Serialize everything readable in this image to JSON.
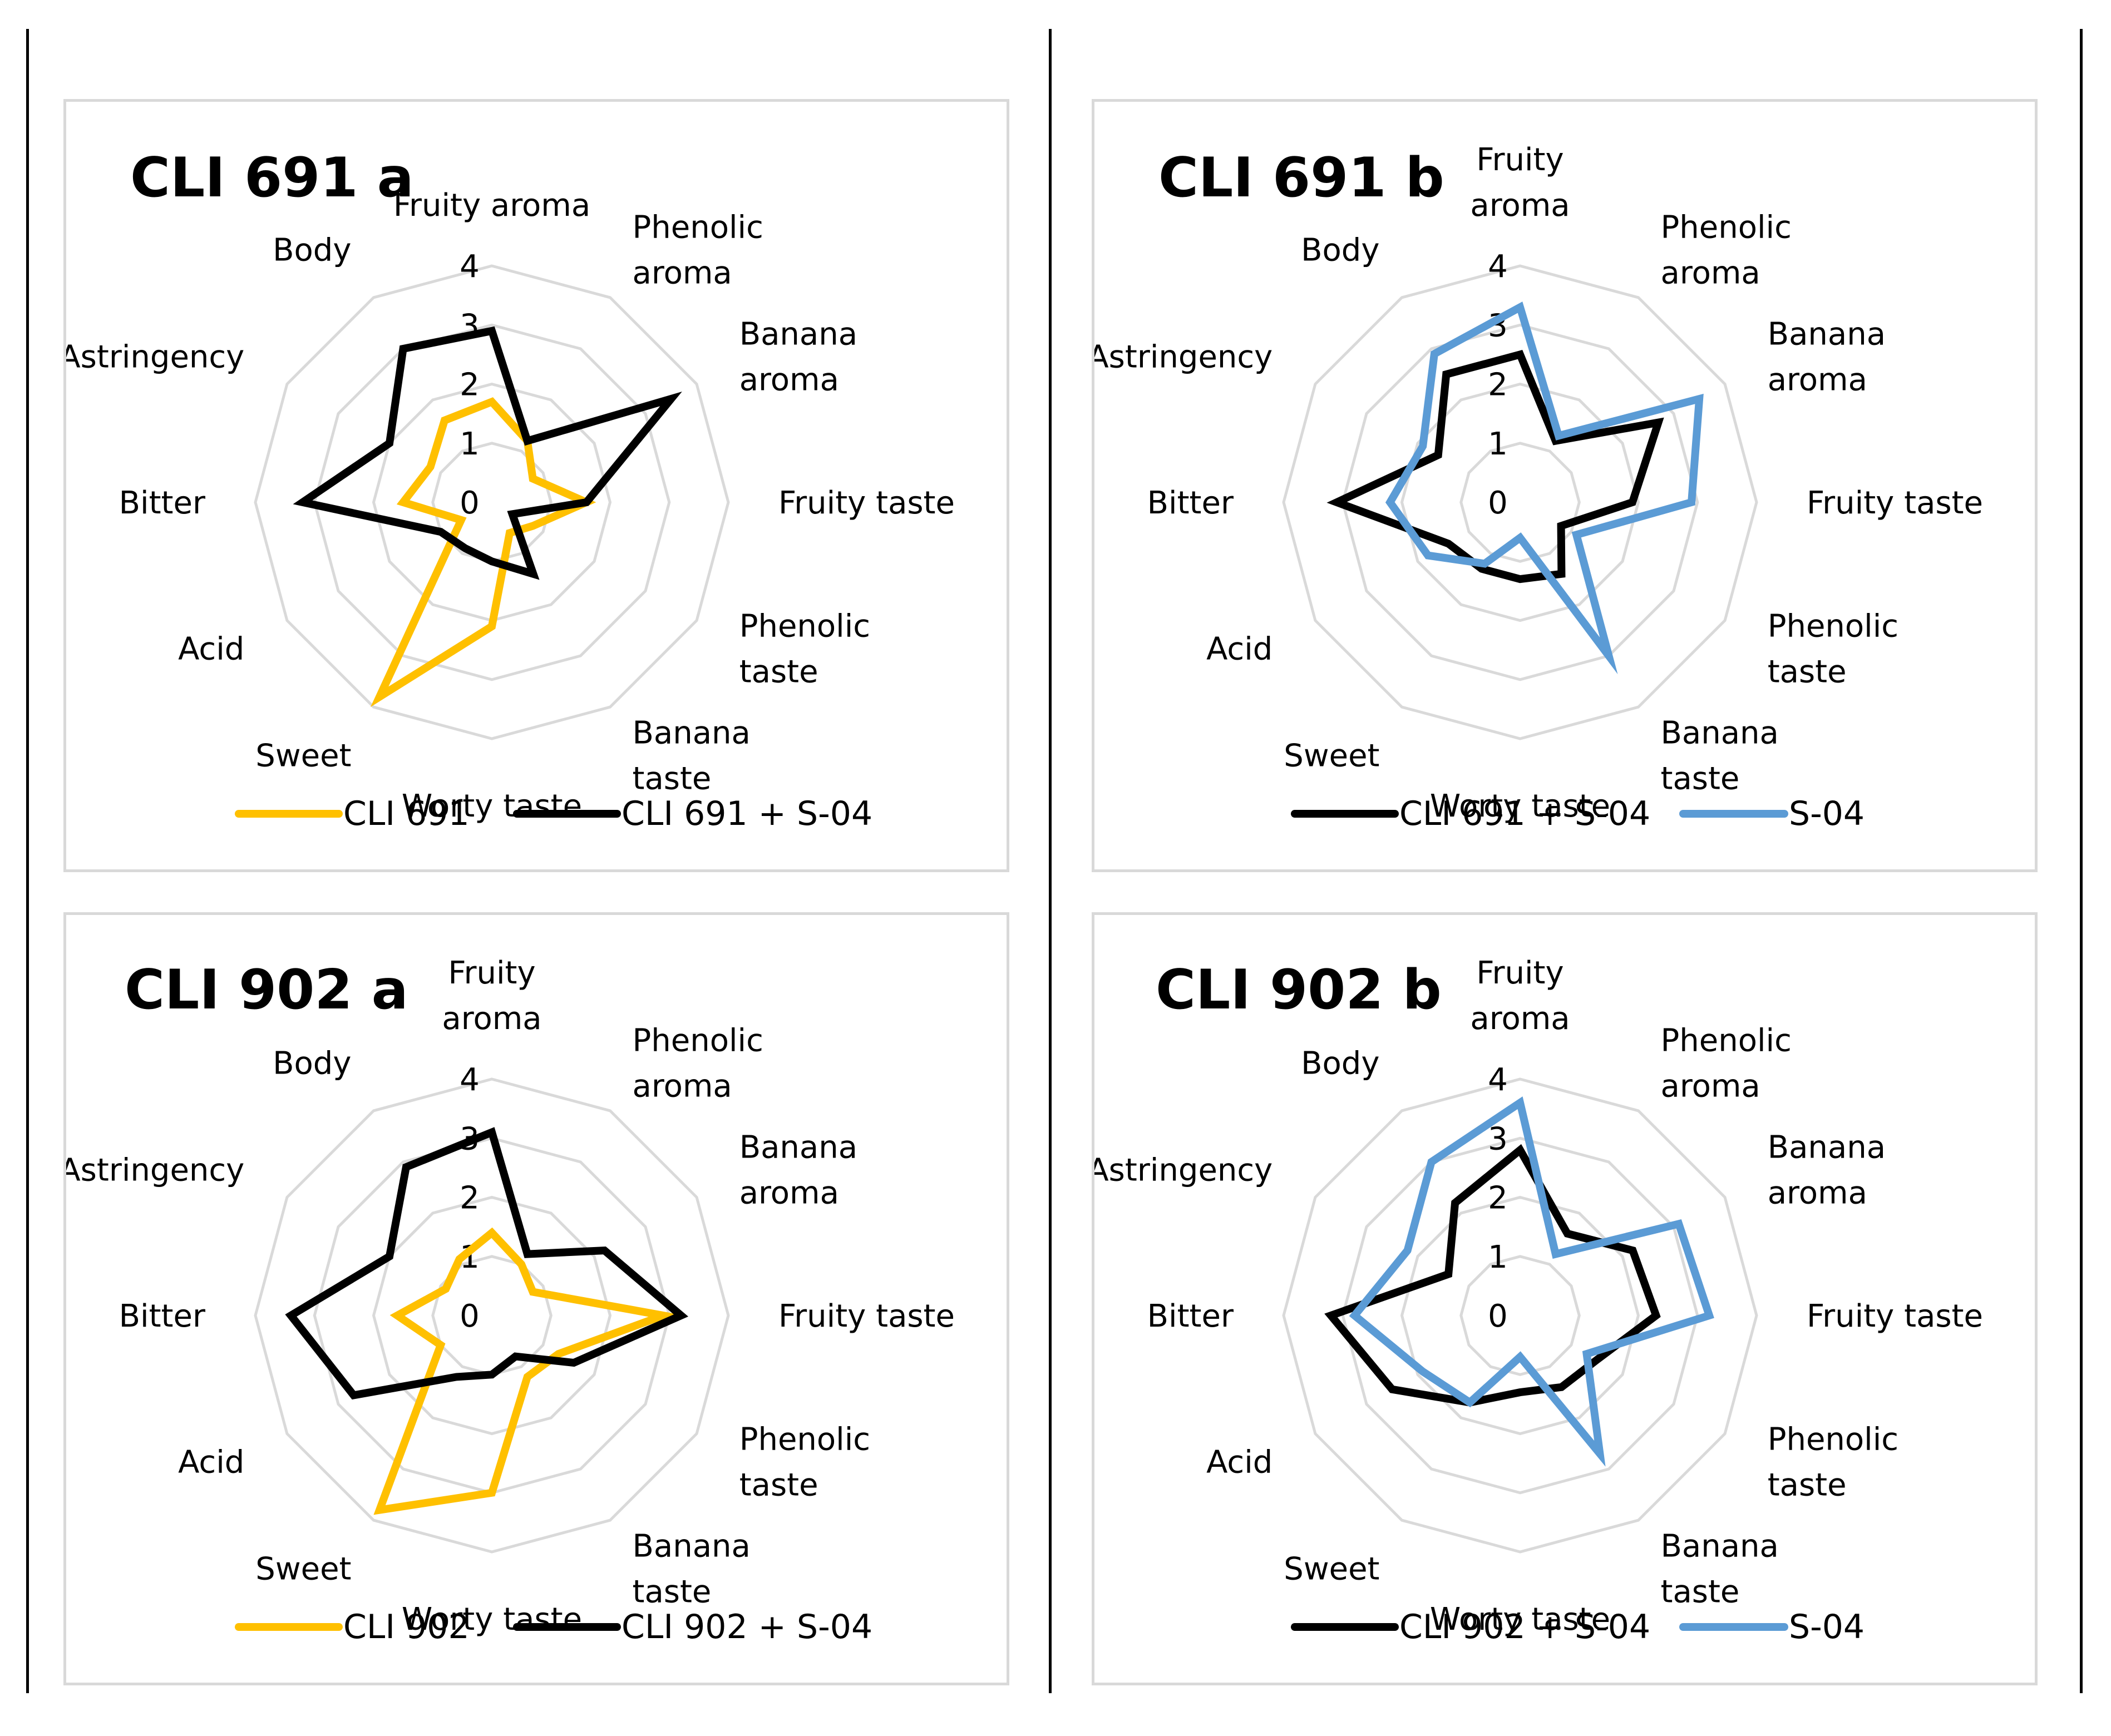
{
  "figure": {
    "colors": {
      "cli": "#ffc000",
      "mix": "#000000",
      "s04": "#5b9bd5",
      "grid": "#d9d9d9"
    }
  },
  "chart_data": [
    {
      "id": "cli691a",
      "type": "radar",
      "title": "CLI 691 a",
      "axes": [
        "Fruity aroma",
        "Phenolic aroma",
        "Banana aroma",
        "Fruity taste",
        "Phenolic taste",
        "Banana taste",
        "Worty taste",
        "Sweet",
        "Acid",
        "Bitter",
        "Astringency",
        "Body"
      ],
      "rlim": [
        0,
        4
      ],
      "ticks": [
        "0",
        "1",
        "2",
        "3",
        "4"
      ],
      "grid": true,
      "legend_position": "bottom",
      "series": [
        {
          "name": "CLI 691",
          "color": "#ffc000",
          "values": [
            1.7,
            1.2,
            0.8,
            1.6,
            0.8,
            0.6,
            2.1,
            3.8,
            0.6,
            1.5,
            1.2,
            1.6
          ]
        },
        {
          "name": "CLI 691 + S-04",
          "color": "#000000",
          "values": [
            2.9,
            1.2,
            3.5,
            1.6,
            0.4,
            1.4,
            1.0,
            0.9,
            1.0,
            3.2,
            2.0,
            3.0
          ]
        }
      ]
    },
    {
      "id": "cli691b",
      "type": "radar",
      "title": "CLI 691 b",
      "axes": [
        "Fruity aroma",
        "Phenolic aroma",
        "Banana aroma",
        "Fruity taste",
        "Phenolic taste",
        "Banana taste",
        "Worty taste",
        "Sweet",
        "Acid",
        "Bitter",
        "Astringency",
        "Body"
      ],
      "rlim": [
        0,
        4
      ],
      "ticks": [
        "0",
        "1",
        "2",
        "3",
        "4"
      ],
      "grid": true,
      "legend_position": "bottom",
      "series": [
        {
          "name": "CLI 691 + S-04",
          "color": "#000000",
          "values": [
            2.5,
            1.2,
            2.7,
            1.9,
            0.8,
            1.4,
            1.3,
            1.3,
            1.4,
            3.1,
            1.6,
            2.5
          ]
        },
        {
          "name": "S-04",
          "color": "#5b9bd5",
          "values": [
            3.3,
            1.3,
            3.5,
            2.9,
            1.1,
            3.0,
            0.6,
            1.2,
            1.8,
            2.2,
            1.9,
            2.9
          ]
        }
      ]
    },
    {
      "id": "cli902a",
      "type": "radar",
      "title": "CLI 902 a",
      "axes": [
        "Fruity aroma",
        "Phenolic aroma",
        "Banana aroma",
        "Fruity taste",
        "Phenolic taste",
        "Banana taste",
        "Worty taste",
        "Sweet",
        "Acid",
        "Bitter",
        "Astringency",
        "Body"
      ],
      "rlim": [
        0,
        4
      ],
      "ticks": [
        "0",
        "1",
        "2",
        "3",
        "4"
      ],
      "grid": true,
      "legend_position": "bottom",
      "series": [
        {
          "name": "CLI 902",
          "color": "#ffc000",
          "values": [
            1.4,
            1.0,
            0.8,
            2.9,
            1.3,
            1.2,
            3.0,
            3.8,
            1.0,
            1.6,
            0.9,
            1.1
          ]
        },
        {
          "name": "CLI 902 + S-04",
          "color": "#000000",
          "values": [
            3.1,
            1.2,
            2.2,
            3.2,
            1.6,
            0.8,
            1.0,
            1.2,
            2.7,
            3.4,
            2.0,
            2.9
          ]
        }
      ]
    },
    {
      "id": "cli902b",
      "type": "radar",
      "title": "CLI 902 b",
      "axes": [
        "Fruity aroma",
        "Phenolic aroma",
        "Banana aroma",
        "Fruity taste",
        "Phenolic taste",
        "Banana taste",
        "Worty taste",
        "Sweet",
        "Acid",
        "Bitter",
        "Astringency",
        "Body"
      ],
      "rlim": [
        0,
        4
      ],
      "ticks": [
        "0",
        "1",
        "2",
        "3",
        "4"
      ],
      "grid": true,
      "legend_position": "bottom",
      "series": [
        {
          "name": "CLI 902 + S-04",
          "color": "#000000",
          "values": [
            2.8,
            1.6,
            2.2,
            2.3,
            1.5,
            1.4,
            1.3,
            1.7,
            2.5,
            3.2,
            1.4,
            2.2
          ]
        },
        {
          "name": "S-04",
          "color": "#5b9bd5",
          "values": [
            3.6,
            1.2,
            3.1,
            3.2,
            1.3,
            2.7,
            0.7,
            1.7,
            1.9,
            2.8,
            2.2,
            3.0
          ]
        }
      ]
    }
  ]
}
